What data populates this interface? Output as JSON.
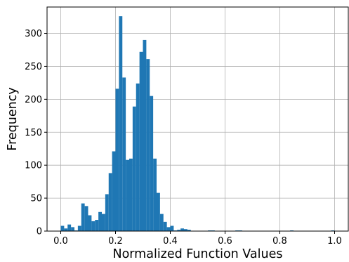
{
  "chart_data": {
    "type": "bar",
    "title": "",
    "xlabel": "Normalized Function Values",
    "ylabel": "Frequency",
    "xlim": [
      -0.05,
      1.05
    ],
    "ylim": [
      0,
      340
    ],
    "grid": true,
    "legend": "none",
    "bar_color": "#1f77b4",
    "x_ticks": [
      {
        "value": 0.0,
        "label": "0.0"
      },
      {
        "value": 0.2,
        "label": "0.2"
      },
      {
        "value": 0.4,
        "label": "0.4"
      },
      {
        "value": 0.6,
        "label": "0.6"
      },
      {
        "value": 0.8,
        "label": "0.8"
      },
      {
        "value": 1.0,
        "label": "1.0"
      }
    ],
    "y_ticks": [
      {
        "value": 0,
        "label": "0"
      },
      {
        "value": 50,
        "label": "50"
      },
      {
        "value": 100,
        "label": "100"
      },
      {
        "value": 150,
        "label": "150"
      },
      {
        "value": 200,
        "label": "200"
      },
      {
        "value": 250,
        "label": "250"
      },
      {
        "value": 300,
        "label": "300"
      }
    ],
    "bin_width": 0.0125,
    "bins_start": [
      0.0,
      0.0125,
      0.025,
      0.0375,
      0.05,
      0.0625,
      0.075,
      0.0875,
      0.1,
      0.1125,
      0.125,
      0.1375,
      0.15,
      0.1625,
      0.175,
      0.1875,
      0.2,
      0.2125,
      0.225,
      0.2375,
      0.25,
      0.2625,
      0.275,
      0.2875,
      0.3,
      0.3125,
      0.325,
      0.3375,
      0.35,
      0.3625,
      0.375,
      0.3875,
      0.4,
      0.4125,
      0.425,
      0.4375,
      0.45,
      0.4625,
      0.5375,
      0.55,
      0.6375,
      0.65,
      0.8375,
      0.9875
    ],
    "values": [
      8,
      4,
      10,
      6,
      1,
      8,
      42,
      38,
      24,
      15,
      17,
      29,
      26,
      56,
      88,
      121,
      216,
      326,
      233,
      108,
      110,
      189,
      224,
      272,
      290,
      261,
      205,
      110,
      58,
      26,
      14,
      6,
      8,
      1,
      2,
      4,
      3,
      2,
      1,
      1,
      1,
      1,
      1,
      1
    ]
  }
}
